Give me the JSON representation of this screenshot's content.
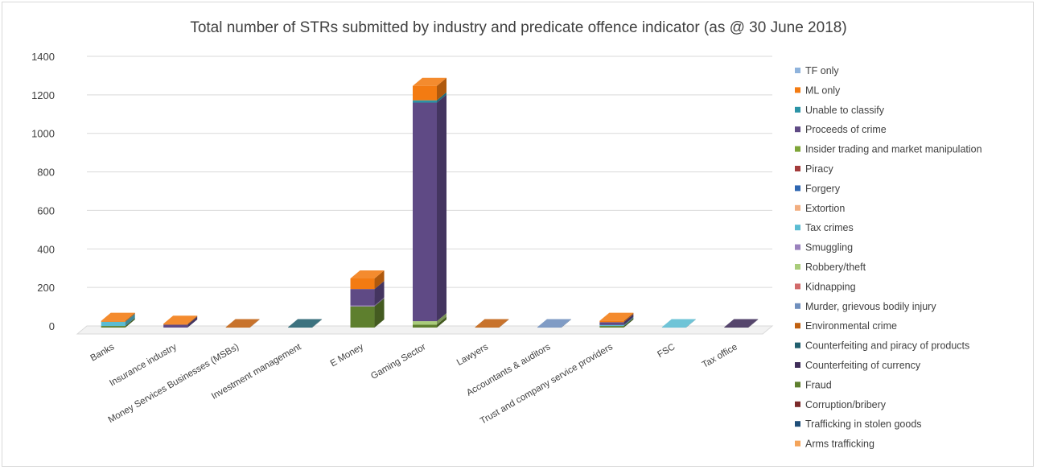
{
  "chart_data": {
    "type": "bar",
    "stacked": true,
    "three_d": true,
    "title": "Total number of STRs submitted by industry and predicate offence indicator (as @ 30 June 2018)",
    "xlabel": "",
    "ylabel": "",
    "ylim": [
      0,
      1400
    ],
    "yticks": [
      0,
      200,
      400,
      600,
      800,
      1000,
      1200,
      1400
    ],
    "grid": true,
    "legend_position": "right",
    "categories": [
      "Banks",
      "Insurance industry",
      "Money Services Businesses (MSBs)",
      "Investment management",
      "E Money",
      "Gaming Sector",
      "Lawyers",
      "Accountants & auditors",
      "Trust and company service providers",
      "FSC",
      "Tax office"
    ],
    "series": [
      {
        "name": "Arms trafficking",
        "color": "#f4a45a",
        "values": [
          0,
          0,
          0,
          0,
          0,
          0,
          0,
          0,
          0,
          0,
          0
        ]
      },
      {
        "name": "Trafficking in stolen goods",
        "color": "#1f4e79",
        "values": [
          0,
          0,
          0,
          0,
          0,
          0,
          0,
          0,
          0,
          0,
          0
        ]
      },
      {
        "name": "Corruption/bribery",
        "color": "#7b2a2a",
        "values": [
          0,
          0,
          0,
          0,
          0,
          0,
          0,
          0,
          0,
          0,
          0
        ]
      },
      {
        "name": "Fraud",
        "color": "#5e7f2e",
        "values": [
          8,
          0,
          0,
          0,
          110,
          15,
          0,
          0,
          8,
          0,
          0
        ]
      },
      {
        "name": "Counterfeiting of currency",
        "color": "#3f2d59",
        "values": [
          0,
          0,
          0,
          0,
          0,
          0,
          0,
          0,
          0,
          0,
          2
        ]
      },
      {
        "name": "Counterfeiting and piracy of products",
        "color": "#215f6e",
        "values": [
          0,
          0,
          0,
          2,
          0,
          0,
          0,
          0,
          0,
          0,
          0
        ]
      },
      {
        "name": "Environmental crime",
        "color": "#c0600f",
        "values": [
          0,
          0,
          2,
          0,
          0,
          0,
          2,
          0,
          0,
          0,
          0
        ]
      },
      {
        "name": "Murder, grievous bodily injury",
        "color": "#6f8fbd",
        "values": [
          0,
          0,
          0,
          0,
          0,
          0,
          0,
          2,
          0,
          0,
          0
        ]
      },
      {
        "name": "Kidnapping",
        "color": "#d16a6a",
        "values": [
          0,
          0,
          0,
          0,
          0,
          0,
          0,
          0,
          0,
          0,
          0
        ]
      },
      {
        "name": "Robbery/theft",
        "color": "#a9cc7a",
        "values": [
          0,
          0,
          0,
          0,
          0,
          18,
          0,
          0,
          0,
          0,
          0
        ]
      },
      {
        "name": "Smuggling",
        "color": "#9a82bd",
        "values": [
          0,
          0,
          0,
          0,
          5,
          0,
          0,
          0,
          0,
          0,
          0
        ]
      },
      {
        "name": "Tax crimes",
        "color": "#5bbcd2",
        "values": [
          22,
          0,
          0,
          0,
          0,
          0,
          0,
          0,
          5,
          2,
          0
        ]
      },
      {
        "name": "Extortion",
        "color": "#f2ae80",
        "values": [
          0,
          0,
          0,
          0,
          0,
          0,
          0,
          0,
          0,
          0,
          0
        ]
      },
      {
        "name": "Forgery",
        "color": "#2e66b1",
        "values": [
          0,
          0,
          0,
          0,
          0,
          0,
          0,
          0,
          0,
          0,
          0
        ]
      },
      {
        "name": "Piracy",
        "color": "#a33b3b",
        "values": [
          0,
          0,
          0,
          0,
          0,
          0,
          0,
          0,
          0,
          0,
          0
        ]
      },
      {
        "name": "Insider trading and market manipulation",
        "color": "#7ea538",
        "values": [
          0,
          0,
          0,
          0,
          0,
          0,
          0,
          0,
          0,
          0,
          0
        ]
      },
      {
        "name": "Proceeds of crime",
        "color": "#5f4a85",
        "values": [
          0,
          15,
          0,
          0,
          85,
          1135,
          0,
          0,
          15,
          0,
          0
        ]
      },
      {
        "name": "Unable to classify",
        "color": "#2b93a6",
        "values": [
          0,
          0,
          0,
          0,
          0,
          12,
          0,
          0,
          0,
          0,
          0
        ]
      },
      {
        "name": "ML only",
        "color": "#f37b12",
        "values": [
          5,
          5,
          0,
          0,
          55,
          75,
          0,
          0,
          7,
          0,
          0
        ]
      },
      {
        "name": "TF only",
        "color": "#8fb3dc",
        "values": [
          0,
          0,
          0,
          0,
          0,
          0,
          0,
          0,
          0,
          0,
          0
        ]
      }
    ]
  }
}
